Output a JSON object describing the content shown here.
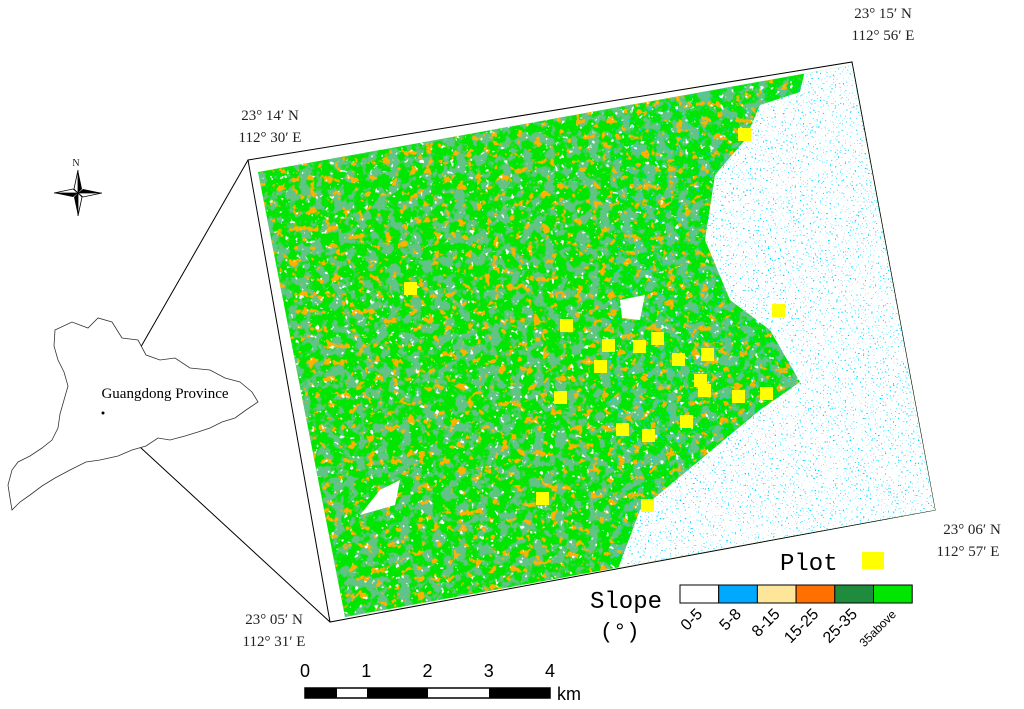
{
  "map": {
    "corners": {
      "top_left": {
        "lat": "23° 14′ N",
        "lon": "112° 30′ E"
      },
      "top_right": {
        "lat": "23° 15′ N",
        "lon": "112° 56′ E"
      },
      "bottom_right": {
        "lat": "23° 06′ N",
        "lon": "112° 57′ E"
      },
      "bottom_left": {
        "lat": "23° 05′ N",
        "lon": "112° 31′ E"
      }
    },
    "north_label": "N",
    "inset_label": "Guangdong Province",
    "legend": {
      "plot_label": "Plot",
      "plot_color": "#ffff00",
      "slope_title": "Slope",
      "slope_unit": "(°)",
      "classes": [
        {
          "label": "0-5",
          "color": "#ffffff"
        },
        {
          "label": "5-8",
          "color": "#00a8ff"
        },
        {
          "label": "8-15",
          "color": "#fde59a"
        },
        {
          "label": "15-25",
          "color": "#ff7000"
        },
        {
          "label": "25-35",
          "color": "#1e8c3c"
        },
        {
          "label": "35above",
          "color": "#00e600"
        }
      ]
    },
    "scale_bar": {
      "ticks": [
        0,
        1,
        2,
        3,
        4
      ],
      "unit": "km"
    }
  }
}
